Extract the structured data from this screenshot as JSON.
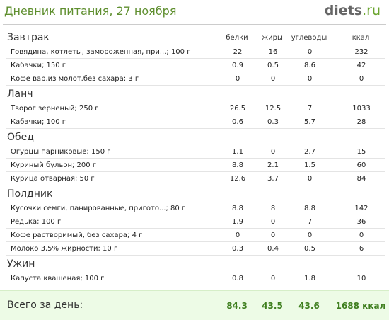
{
  "header": {
    "title": "Дневник питания, 27 ноября",
    "logo_name": "diets",
    "logo_domain": ".ru"
  },
  "columns": [
    "белки",
    "жиры",
    "углеводы",
    "ккал"
  ],
  "sections": [
    {
      "name": "Завтрак",
      "rows": [
        [
          "Говядина, котлеты, замороженная, при...; 100 г",
          "22",
          "16",
          "0",
          "232"
        ],
        [
          "Кабачки; 150 г",
          "0.9",
          "0.5",
          "8.6",
          "42"
        ],
        [
          "Кофе вар.из молот.без сахара; 3 г",
          "0",
          "0",
          "0",
          "0"
        ]
      ]
    },
    {
      "name": "Ланч",
      "rows": [
        [
          "Творог зерненый; 250 г",
          "26.5",
          "12.5",
          "7",
          "1033"
        ],
        [
          "Кабачки; 100 г",
          "0.6",
          "0.3",
          "5.7",
          "28"
        ]
      ]
    },
    {
      "name": "Обед",
      "rows": [
        [
          "Огурцы парниковые; 150 г",
          "1.1",
          "0",
          "2.7",
          "15"
        ],
        [
          "Куриный бульон; 200 г",
          "8.8",
          "2.1",
          "1.5",
          "60"
        ],
        [
          "Курица отварная; 50 г",
          "12.6",
          "3.7",
          "0",
          "84"
        ]
      ]
    },
    {
      "name": "Полдник",
      "rows": [
        [
          "Кусочки семги, панированные, пригото...; 80 г",
          "8.8",
          "8",
          "8.8",
          "142"
        ],
        [
          "Редька; 100 г",
          "1.9",
          "0",
          "7",
          "36"
        ],
        [
          "Кофе растворимый, без сахара; 4 г",
          "0",
          "0",
          "0",
          "0"
        ],
        [
          "Молоко 3,5% жирности; 10 г",
          "0.3",
          "0.4",
          "0.5",
          "6"
        ]
      ]
    },
    {
      "name": "Ужин",
      "rows": [
        [
          "Капуста квашеная; 100 г",
          "0.8",
          "0",
          "1.8",
          "10"
        ]
      ]
    }
  ],
  "footer": {
    "label": "Всего за день:",
    "totals": [
      "84.3",
      "43.5",
      "43.6",
      "1688 ккал"
    ]
  }
}
